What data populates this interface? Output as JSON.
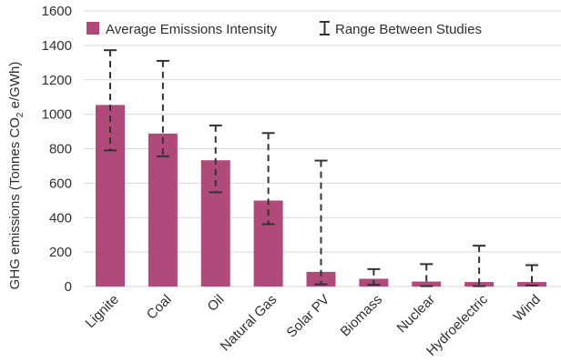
{
  "chart_data": {
    "type": "bar",
    "title": "",
    "xlabel": "",
    "ylabel": "GHG emissions (Tonnes CO",
    "ylabel_sub": "2",
    "ylabel_tail": " e/GWh)",
    "ylim": [
      0,
      1600
    ],
    "yticks": [
      "0",
      "200",
      "400",
      "600",
      "800",
      "1000",
      "1200",
      "1400",
      "1600"
    ],
    "grid": true,
    "legend_placement": "top",
    "categories": [
      "Lignite",
      "Coal",
      "Oil",
      "Natural Gas",
      "Solar PV",
      "Biomass",
      "Nuclear",
      "Hydroelectric",
      "Wind"
    ],
    "series": [
      {
        "name": "Average Emissions Intensity",
        "color": "#b04a7a",
        "values": [
          1054,
          888,
          733,
          499,
          85,
          45,
          29,
          26,
          26
        ]
      }
    ],
    "error_ranges": {
      "name": "Range Between Studies",
      "color": "#333333",
      "low": [
        790,
        756,
        547,
        362,
        13,
        10,
        2,
        2,
        6
      ],
      "high": [
        1372,
        1310,
        935,
        891,
        731,
        101,
        130,
        237,
        124
      ]
    }
  }
}
